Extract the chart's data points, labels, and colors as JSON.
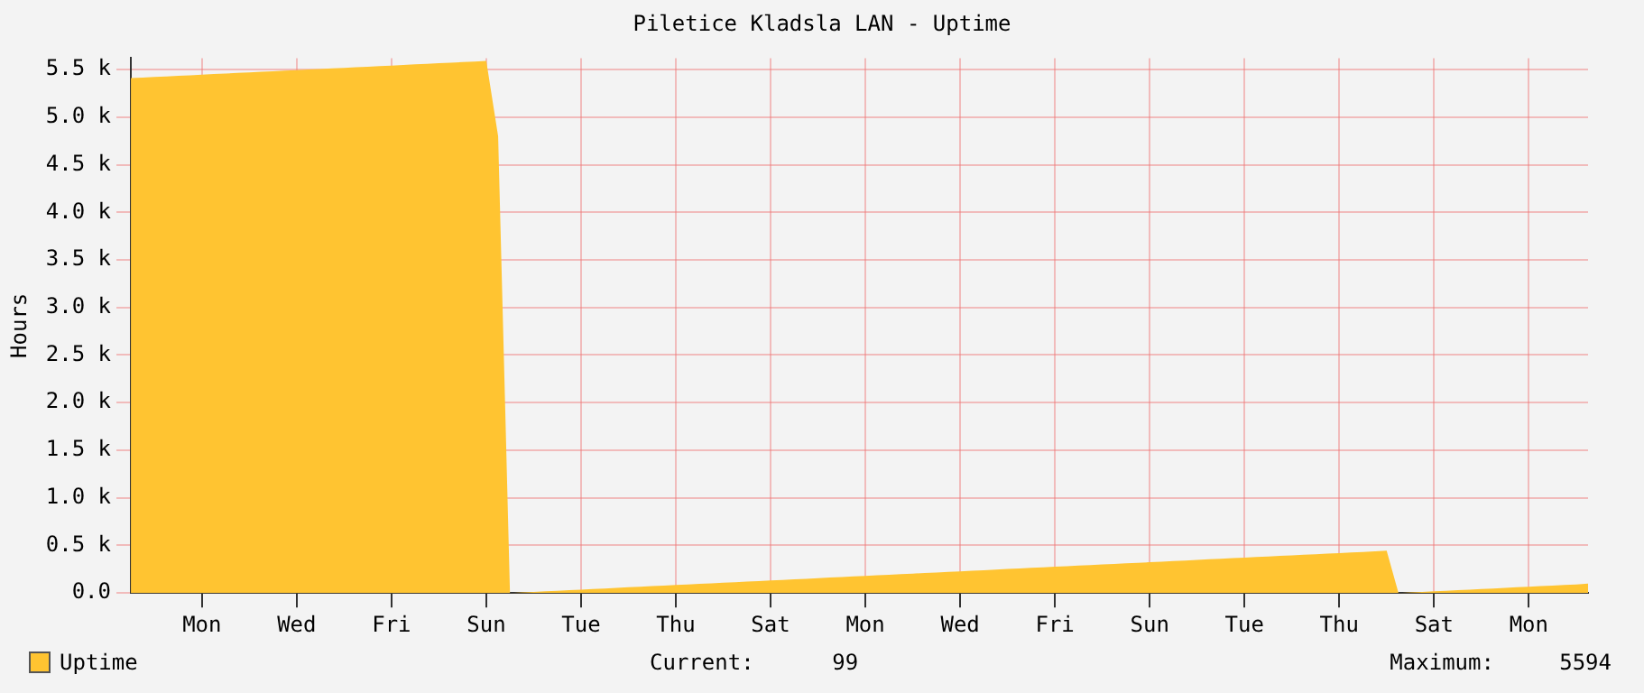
{
  "chart_data": {
    "type": "area",
    "title": "Piletice Kladsla LAN - Uptime",
    "ylabel": "Hours",
    "categories": [
      null,
      null,
      null,
      null,
      null,
      null,
      "Mon",
      null,
      null,
      null,
      null,
      null,
      null,
      null,
      "Wed",
      null,
      null,
      null,
      null,
      null,
      null,
      null,
      "Fri",
      null,
      null,
      null,
      null,
      null,
      null,
      null,
      "Sun",
      null,
      null,
      null,
      null,
      null,
      null,
      null,
      "Tue",
      null,
      null,
      null,
      null,
      null,
      null,
      null,
      "Thu",
      null,
      null,
      null,
      null,
      null,
      null,
      null,
      "Sat",
      null,
      null,
      null,
      null,
      null,
      null,
      null,
      "Mon",
      null,
      null,
      null,
      null,
      null,
      null,
      null,
      "Wed",
      null,
      null,
      null,
      null,
      null,
      null,
      null,
      "Fri",
      null,
      null,
      null,
      null,
      null,
      null,
      null,
      "Sun",
      null,
      null,
      null,
      null,
      null,
      null,
      null,
      "Tue",
      null,
      null,
      null,
      null,
      null,
      null,
      null,
      "Thu",
      null,
      null,
      null,
      null,
      null,
      null,
      null,
      "Sat",
      null,
      null,
      null,
      null,
      null,
      null,
      null,
      "Mon",
      null,
      null,
      null,
      null,
      null
    ],
    "series": [
      {
        "name": "Uptime",
        "color": "#ffc431",
        "values": [
          5410,
          5416,
          5422,
          5428,
          5434,
          5440,
          5446,
          5452,
          5458,
          5464,
          5470,
          5476,
          5482,
          5488,
          5494,
          5500,
          5506,
          5512,
          5518,
          5524,
          5530,
          5536,
          5542,
          5548,
          5554,
          5560,
          5566,
          5572,
          5578,
          5584,
          5590,
          4800,
          0,
          6,
          12,
          18,
          24,
          30,
          36,
          42,
          48,
          54,
          60,
          66,
          72,
          78,
          84,
          90,
          96,
          102,
          108,
          114,
          120,
          126,
          132,
          138,
          144,
          150,
          156,
          162,
          168,
          174,
          180,
          186,
          192,
          198,
          204,
          210,
          216,
          222,
          228,
          234,
          240,
          246,
          252,
          258,
          264,
          270,
          276,
          282,
          288,
          294,
          300,
          306,
          312,
          318,
          324,
          330,
          336,
          342,
          348,
          354,
          360,
          366,
          372,
          378,
          384,
          390,
          396,
          402,
          408,
          414,
          420,
          426,
          432,
          438,
          444,
          0,
          6,
          12,
          18,
          24,
          30,
          36,
          42,
          48,
          54,
          60,
          66,
          72,
          78,
          84,
          90,
          99
        ]
      }
    ],
    "ylim": [
      0,
      5620
    ],
    "yticks": [
      {
        "value": 0,
        "label": "0.0"
      },
      {
        "value": 500,
        "label": "0.5 k"
      },
      {
        "value": 1000,
        "label": "1.0 k"
      },
      {
        "value": 1500,
        "label": "1.5 k"
      },
      {
        "value": 2000,
        "label": "2.0 k"
      },
      {
        "value": 2500,
        "label": "2.5 k"
      },
      {
        "value": 3000,
        "label": "3.0 k"
      },
      {
        "value": 3500,
        "label": "3.5 k"
      },
      {
        "value": 4000,
        "label": "4.0 k"
      },
      {
        "value": 4500,
        "label": "4.5 k"
      },
      {
        "value": 5000,
        "label": "5.0 k"
      },
      {
        "value": 5500,
        "label": "5.5 k"
      }
    ],
    "grid": true,
    "legend": "bottom left",
    "annotations": [
      "Current:      99",
      "Maximum:     5594"
    ]
  }
}
